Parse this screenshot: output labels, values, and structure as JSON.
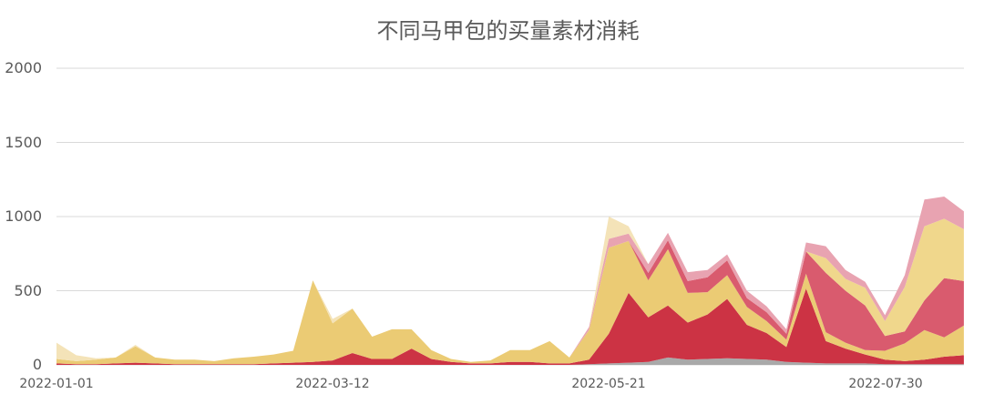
{
  "chart_data": {
    "type": "area",
    "stacked": true,
    "title": "不同马甲包的买量素材消耗",
    "xlabel": "",
    "ylabel": "",
    "ylim": [
      0,
      2000
    ],
    "yticks": [
      0,
      500,
      1000,
      1500,
      2000
    ],
    "xtick_labels": [
      "2022-01-01",
      "2022-03-12",
      "2022-05-21",
      "2022-07-30"
    ],
    "grid": true,
    "legend": "none",
    "x_start": "2022-01-01",
    "x_step_days": 5,
    "x": [
      "01-01",
      "01-06",
      "01-11",
      "01-16",
      "01-21",
      "01-26",
      "01-31",
      "02-05",
      "02-10",
      "02-15",
      "02-20",
      "02-25",
      "03-02",
      "03-07",
      "03-12",
      "03-17",
      "03-22",
      "03-27",
      "04-01",
      "04-06",
      "04-11",
      "04-16",
      "04-21",
      "04-26",
      "05-01",
      "05-06",
      "05-11",
      "05-16",
      "05-21",
      "05-26",
      "05-31",
      "06-05",
      "06-10",
      "06-15",
      "06-20",
      "06-25",
      "06-30",
      "07-05",
      "07-10",
      "07-15",
      "07-20",
      "07-25",
      "07-30",
      "08-04",
      "08-09",
      "08-14",
      "08-19"
    ],
    "series": [
      {
        "name": "gray",
        "color": "#A9A9A9",
        "values": [
          0,
          0,
          0,
          0,
          0,
          0,
          0,
          0,
          0,
          0,
          0,
          0,
          0,
          0,
          0,
          0,
          0,
          0,
          0,
          0,
          0,
          0,
          0,
          0,
          0,
          0,
          0,
          5,
          10,
          15,
          20,
          50,
          35,
          40,
          45,
          40,
          35,
          20,
          15,
          10,
          10,
          10,
          5,
          5,
          5,
          5,
          5
        ]
      },
      {
        "name": "crimson",
        "color": "#CC3344",
        "values": [
          10,
          5,
          5,
          10,
          15,
          10,
          5,
          5,
          5,
          5,
          5,
          10,
          15,
          20,
          30,
          80,
          40,
          40,
          110,
          40,
          20,
          10,
          10,
          20,
          20,
          10,
          10,
          30,
          200,
          470,
          300,
          350,
          250,
          300,
          400,
          230,
          180,
          100,
          500,
          150,
          100,
          60,
          30,
          20,
          30,
          50,
          60
        ]
      },
      {
        "name": "yellow",
        "color": "#EBCB74",
        "values": [
          30,
          20,
          30,
          40,
          110,
          40,
          30,
          30,
          20,
          40,
          50,
          60,
          80,
          550,
          250,
          300,
          150,
          200,
          130,
          60,
          20,
          10,
          20,
          80,
          80,
          150,
          40,
          200,
          580,
          350,
          250,
          380,
          200,
          150,
          160,
          120,
          80,
          50,
          100,
          60,
          40,
          30,
          60,
          120,
          200,
          130,
          200
        ]
      },
      {
        "name": "rose",
        "color": "#D95B6E",
        "values": [
          0,
          0,
          0,
          0,
          0,
          0,
          0,
          0,
          0,
          0,
          0,
          0,
          0,
          0,
          0,
          0,
          0,
          0,
          0,
          0,
          0,
          0,
          0,
          0,
          0,
          0,
          0,
          0,
          0,
          0,
          50,
          60,
          80,
          100,
          100,
          60,
          60,
          40,
          150,
          400,
          350,
          300,
          100,
          80,
          200,
          400,
          300
        ]
      },
      {
        "name": "yellow-2",
        "color": "#F0D78C",
        "values": [
          0,
          0,
          0,
          0,
          0,
          0,
          0,
          0,
          0,
          0,
          0,
          0,
          0,
          0,
          0,
          0,
          0,
          0,
          0,
          0,
          0,
          0,
          0,
          0,
          0,
          0,
          0,
          0,
          0,
          0,
          0,
          0,
          0,
          0,
          0,
          0,
          0,
          0,
          0,
          100,
          80,
          120,
          100,
          300,
          500,
          400,
          350
        ]
      },
      {
        "name": "pink",
        "color": "#E8A3B1",
        "values": [
          0,
          0,
          0,
          0,
          0,
          0,
          0,
          0,
          0,
          0,
          0,
          0,
          0,
          0,
          0,
          0,
          0,
          0,
          0,
          0,
          0,
          0,
          0,
          0,
          0,
          0,
          0,
          20,
          60,
          50,
          60,
          50,
          60,
          50,
          40,
          50,
          40,
          30,
          60,
          80,
          60,
          40,
          40,
          80,
          180,
          150,
          120
        ]
      },
      {
        "name": "cream",
        "color": "#F4E3B8",
        "values": [
          110,
          40,
          10,
          0,
          10,
          0,
          0,
          0,
          0,
          0,
          0,
          0,
          0,
          0,
          30,
          0,
          0,
          0,
          0,
          0,
          0,
          0,
          0,
          0,
          0,
          0,
          0,
          0,
          150,
          50,
          0,
          0,
          0,
          0,
          0,
          0,
          0,
          0,
          0,
          0,
          0,
          0,
          0,
          0,
          0,
          0,
          0
        ]
      }
    ]
  }
}
